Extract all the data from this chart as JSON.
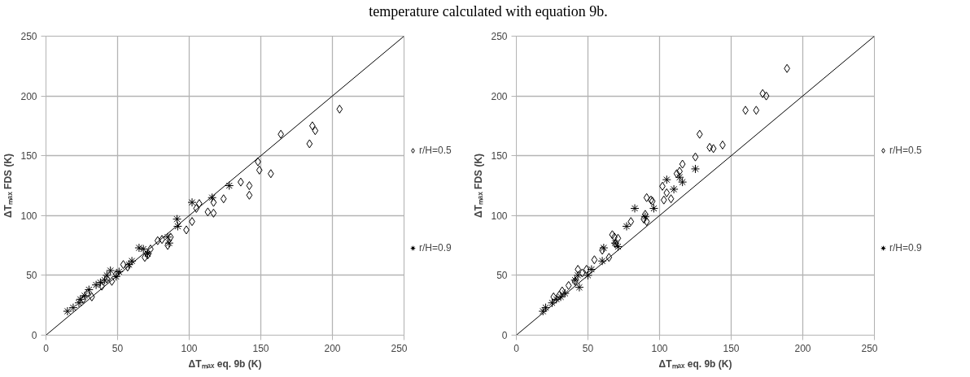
{
  "chart_data": [
    {
      "type": "scatter",
      "annotations": [
        "temperature calculated with equation 9b."
      ],
      "xlabel": "ΔTₘₐₓ eq. 9b (K)",
      "ylabel": "ΔTₘₐₓ FDS (K)",
      "xlim": [
        0,
        250
      ],
      "ylim": [
        0,
        250
      ],
      "xticks": [
        0,
        50,
        100,
        150,
        200,
        250
      ],
      "yticks": [
        0,
        50,
        100,
        150,
        200,
        250
      ],
      "grid": true,
      "legend": "right",
      "series": [
        {
          "name": "r/H=0.5",
          "color": "#000000",
          "marker": "diamond",
          "x": [
            205,
            186,
            188,
            184,
            164,
            148,
            149,
            157,
            136,
            142,
            142,
            124,
            107,
            105,
            117,
            113,
            117,
            102,
            98,
            87,
            85,
            78,
            71,
            69,
            73,
            57,
            54,
            46,
            42.5,
            39,
            32,
            29,
            26,
            49,
            81
          ],
          "values": [
            189,
            175,
            171,
            160,
            168,
            145,
            138,
            135,
            128,
            125,
            117,
            114,
            110,
            106,
            111,
            103,
            102,
            95,
            88,
            82,
            75,
            79,
            67,
            65,
            72,
            57,
            59,
            45,
            47,
            41,
            32,
            35,
            30,
            51,
            80
          ]
        },
        {
          "name": "r/H=0.9",
          "color": "#000000",
          "marker": "cross",
          "x": [
            128,
            116,
            102,
            91.5,
            92,
            85,
            86,
            68,
            65,
            71,
            58,
            60,
            49,
            45,
            42.5,
            41,
            38,
            30,
            27,
            24,
            19,
            15,
            23,
            35,
            51
          ],
          "values": [
            125,
            115,
            111,
            97,
            91,
            82,
            77,
            72,
            73,
            68,
            59,
            62,
            49,
            54,
            50,
            46,
            44,
            38,
            33,
            30,
            23,
            20,
            27,
            42,
            53
          ]
        },
        {
          "type": "line",
          "color": "#000000",
          "x": [
            0,
            250
          ],
          "values": [
            0,
            250
          ]
        }
      ]
    },
    {
      "type": "scatter",
      "xlabel": "ΔTₘₐₓ eq. 9b (K)",
      "ylabel": "ΔTₘₐₓ FDS (K)",
      "xlim": [
        0,
        250
      ],
      "ylim": [
        0,
        250
      ],
      "xticks": [
        0,
        50,
        100,
        150,
        200,
        250
      ],
      "yticks": [
        0,
        50,
        100,
        150,
        200,
        250
      ],
      "grid": true,
      "legend": "right",
      "series": [
        {
          "name": "r/H=0.5",
          "color": "#000000",
          "marker": "diamond",
          "x": [
            189,
            172,
            174.5,
            160,
            167.5,
            128,
            135,
            137.6,
            144,
            125,
            116,
            114,
            112,
            102,
            105,
            108,
            103,
            94,
            91,
            95,
            90,
            89,
            91,
            80,
            67,
            68.5,
            71,
            69,
            64.7,
            60,
            54.5,
            49,
            46,
            43,
            32,
            30,
            26,
            36.5,
            41
          ],
          "values": [
            223,
            202,
            200,
            188,
            188,
            168,
            157,
            156,
            159,
            149,
            143,
            137,
            135,
            124.5,
            119,
            114,
            113,
            113,
            115,
            112,
            101,
            97,
            95,
            95,
            84,
            82,
            81,
            76.5,
            65,
            71,
            63,
            55,
            52,
            55,
            37,
            33.5,
            32,
            41.5,
            45
          ]
        },
        {
          "name": "r/H=0.9",
          "color": "#000000",
          "marker": "cross",
          "x": [
            125,
            105,
            114,
            116,
            110,
            96,
            90,
            82.7,
            77,
            71,
            69,
            61,
            60,
            52.5,
            50,
            43,
            44,
            41,
            31,
            34,
            28,
            25,
            20.5,
            18.6
          ],
          "values": [
            139,
            130,
            132,
            128,
            122,
            106,
            99,
            106,
            91,
            74,
            77,
            73,
            62,
            55,
            50,
            50,
            40,
            46,
            32,
            35,
            30,
            27,
            23,
            20
          ]
        },
        {
          "type": "line",
          "color": "#000000",
          "x": [
            0,
            250
          ],
          "values": [
            0,
            250
          ]
        }
      ]
    }
  ]
}
